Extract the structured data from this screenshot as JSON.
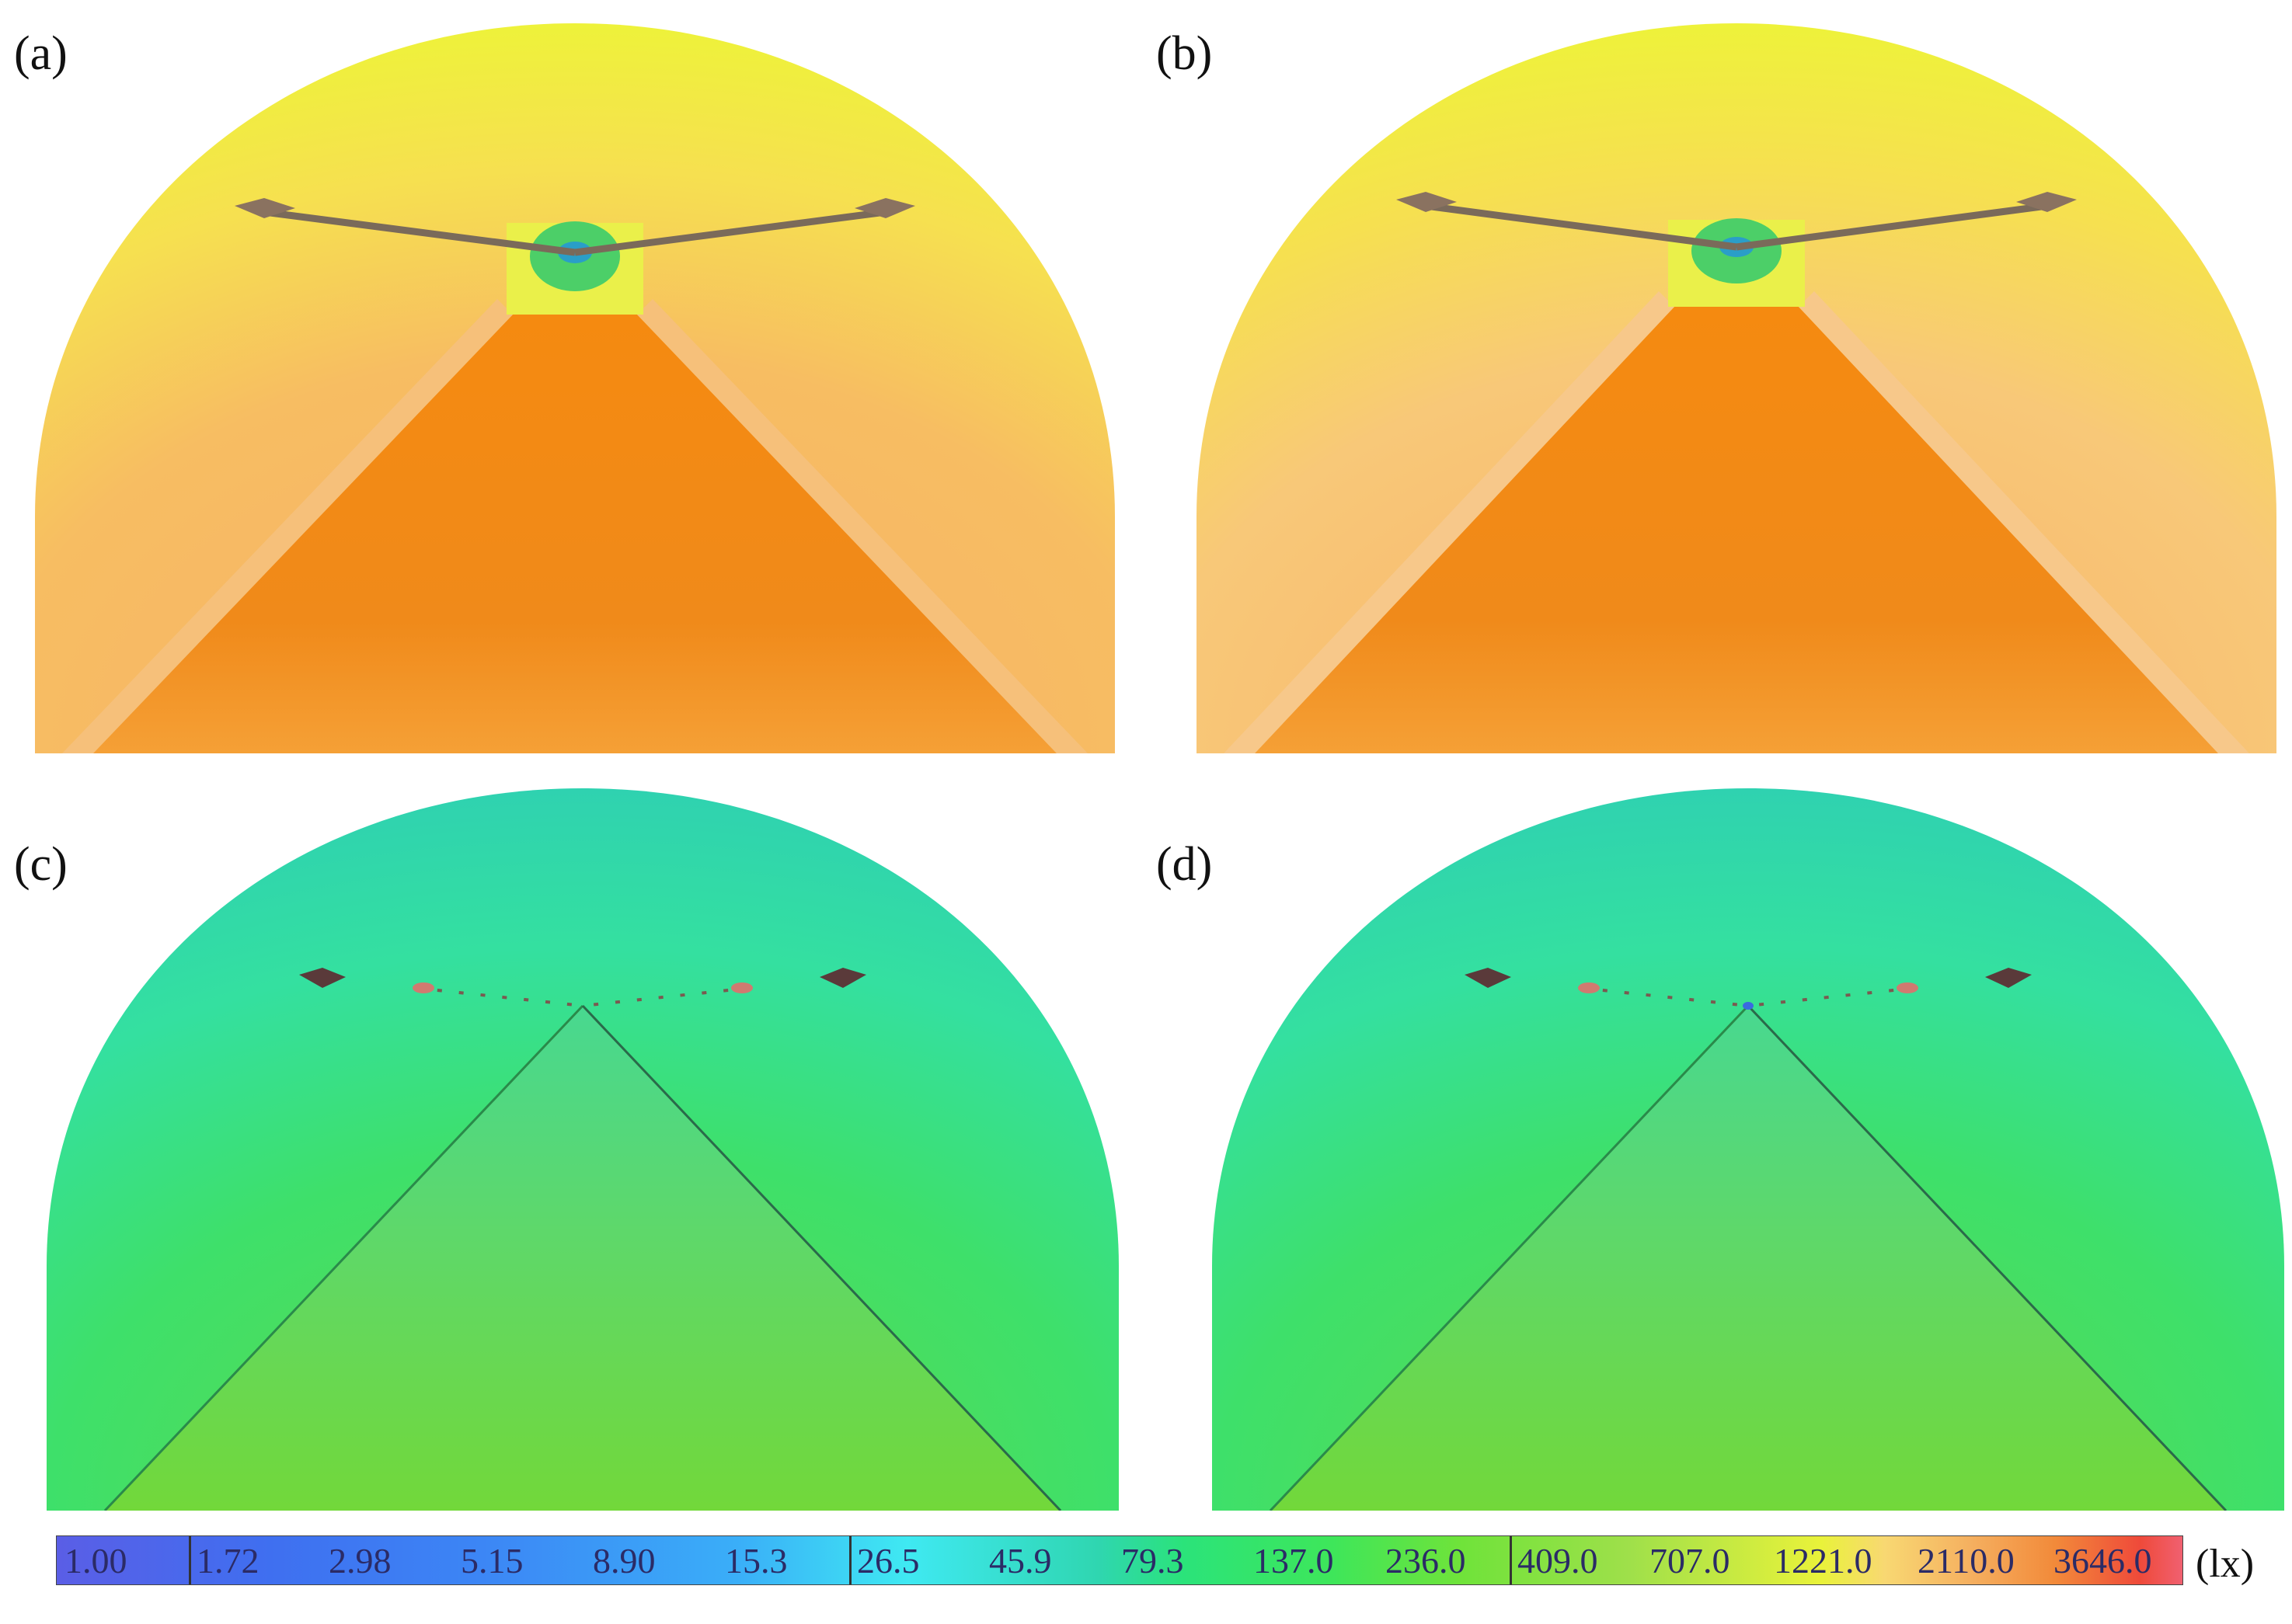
{
  "panels": [
    {
      "id": "a",
      "label": "(a)",
      "theme": "bright"
    },
    {
      "id": "b",
      "label": "(b)",
      "theme": "bright"
    },
    {
      "id": "c",
      "label": "(c)",
      "theme": "dim"
    },
    {
      "id": "d",
      "label": "(d)",
      "theme": "dim"
    }
  ],
  "colorbar": {
    "ticks": [
      "1.00",
      "1.72",
      "2.98",
      "5.15",
      "8.90",
      "15.3",
      "26.5",
      "45.9",
      "79.3",
      "137.0",
      "236.0",
      "409.0",
      "707.0",
      "1221.0",
      "2110.0",
      "3646.0"
    ],
    "unit": "(lx)"
  },
  "colors": {
    "bright_floor": "#f28a14",
    "bright_wall": "#f6b45a",
    "bright_crown": "#eef23a",
    "dim_floor": "#6ad84a",
    "dim_wall": "#3ae07a",
    "dim_crown": "#2fd6b0"
  }
}
